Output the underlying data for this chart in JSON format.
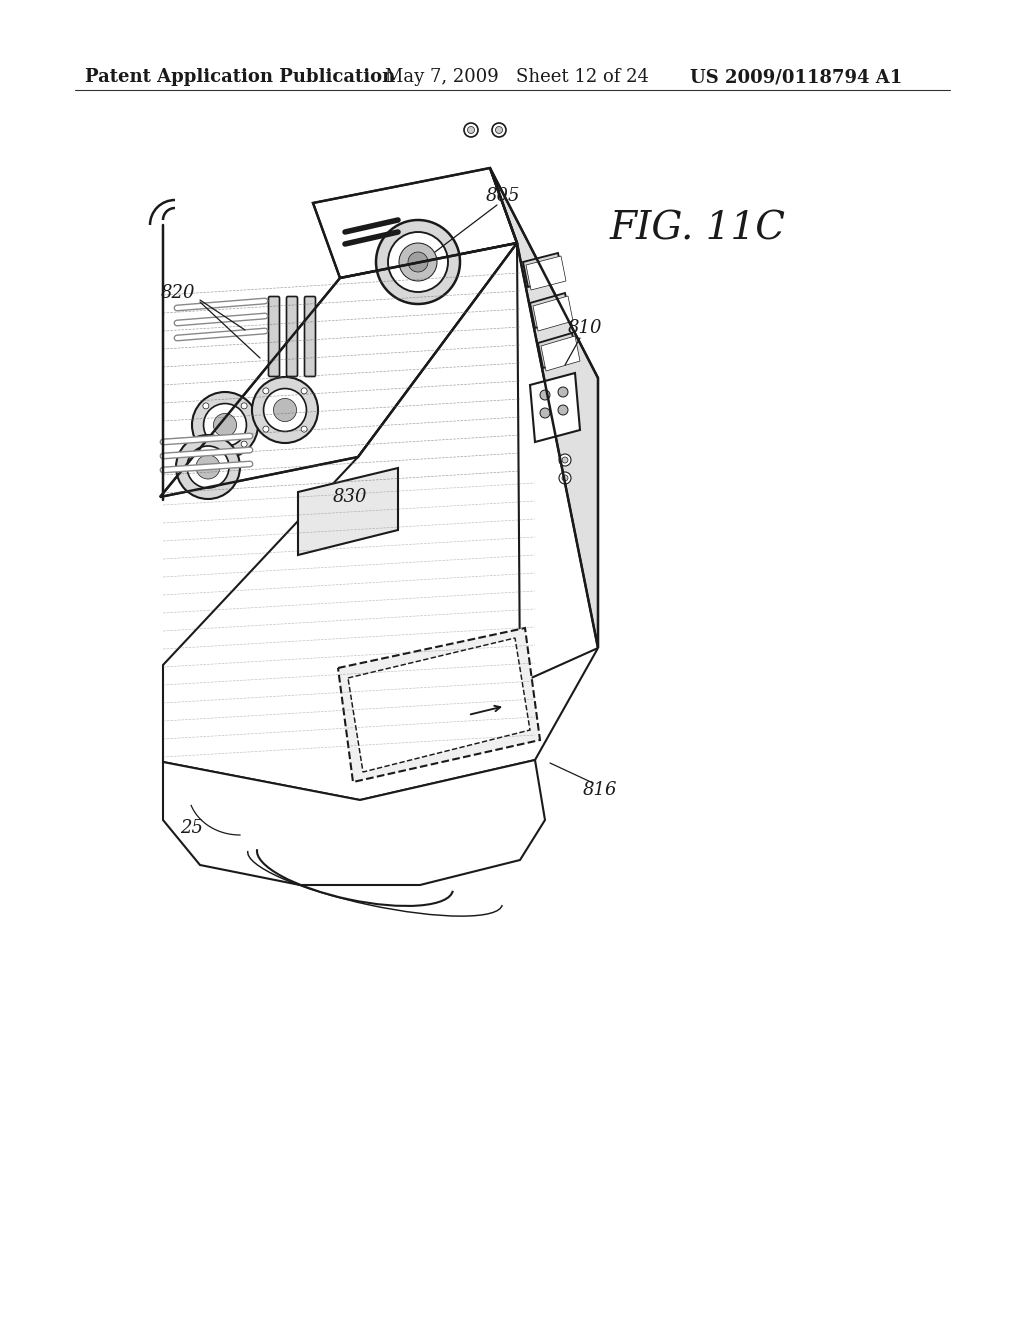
{
  "background_color": "#ffffff",
  "header_left": "Patent Application Publication",
  "header_center": "May 7, 2009   Sheet 12 of 24",
  "header_right": "US 2009/0118794 A1",
  "fig_label": "FIG. 11C",
  "line_color": "#1a1a1a",
  "line_width": 1.5,
  "fig_label_fontsize": 28,
  "header_fontsize": 13
}
